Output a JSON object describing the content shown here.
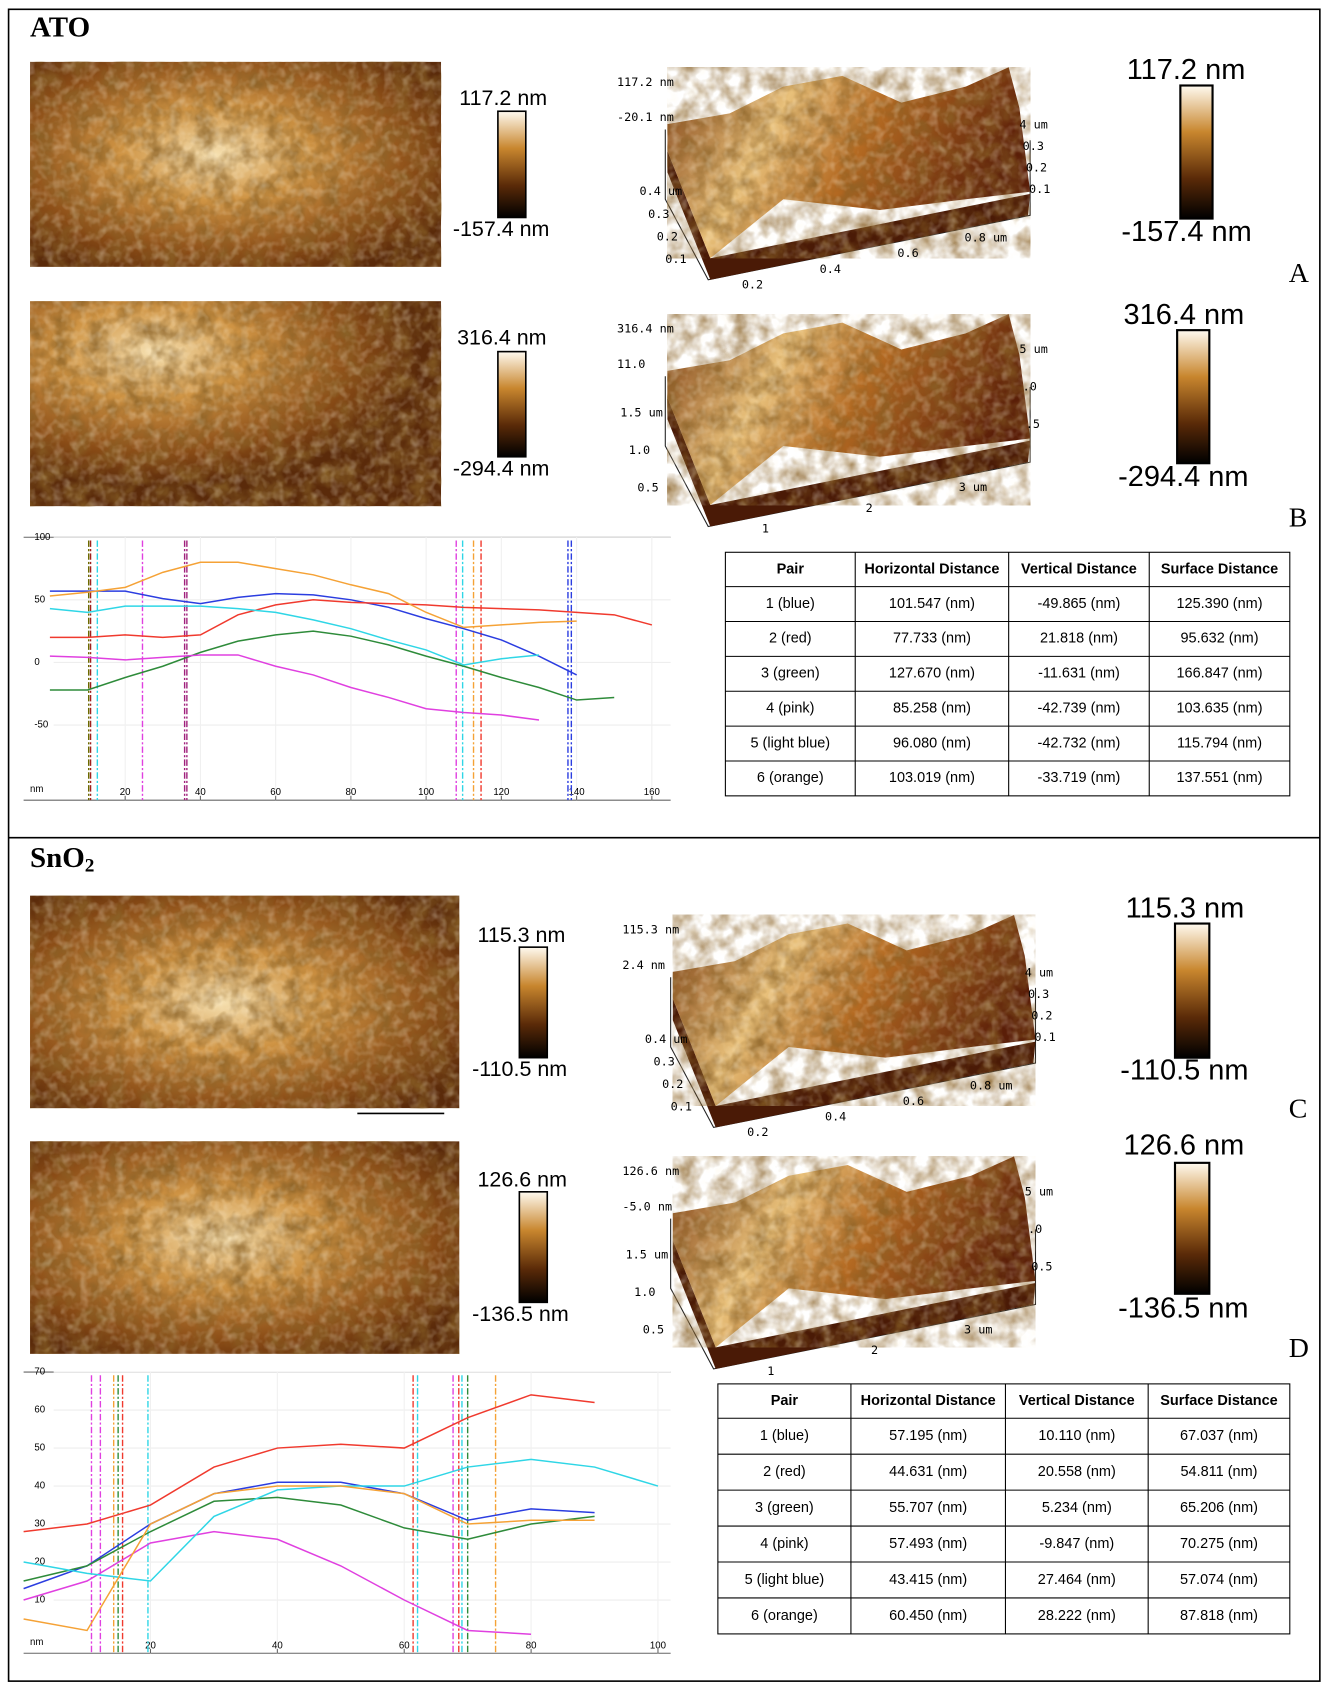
{
  "panels": [
    {
      "title": "ATO",
      "rows": [
        {
          "letter": "A",
          "map_scale": [
            "117.2 nm",
            "-157.4 nm"
          ],
          "surface": {
            "z": [
              "117.2 nm",
              "-20.1 nm"
            ],
            "y": [
              "0.4 um",
              "0.3",
              "0.2",
              "0.1"
            ],
            "right": [
              "4 um",
              "0.3",
              "0.2",
              "0.1"
            ],
            "x": [
              "0.2",
              "0.4",
              "0.6",
              "0.8 um"
            ]
          },
          "scale": [
            "117.2 nm",
            "-157.4 nm"
          ]
        },
        {
          "letter": "B",
          "map_scale": [
            "316.4 nm",
            "-294.4 nm"
          ],
          "surface": {
            "z": [
              "316.4 nm",
              "11.0"
            ],
            "y": [
              "1.5 um",
              "1.0",
              "0.5"
            ],
            "right": [
              "5 um",
              ".0",
              ".5"
            ],
            "x": [
              "1",
              "2",
              "3 um"
            ]
          },
          "scale": [
            "316.4 nm",
            "-294.4 nm"
          ]
        }
      ],
      "chart": {
        "type": "line",
        "xlabel": "nm",
        "xlim": [
          -7,
          165
        ],
        "ylim": [
          -110,
          100
        ],
        "xticks": [
          20,
          40,
          60,
          80,
          100,
          120,
          140,
          160
        ],
        "yticks": [
          100,
          50,
          0,
          -50
        ],
        "x": [
          0,
          10,
          20,
          30,
          40,
          50,
          60,
          70,
          80,
          90,
          100,
          110,
          120,
          130,
          140,
          150,
          160
        ],
        "series": [
          {
            "color": "#2b3de0",
            "values": [
              57,
              57,
              57,
              51,
              47,
              52,
              55,
              54,
              50,
              44,
              35,
              27,
              18,
              5,
              -10,
              null,
              null
            ]
          },
          {
            "color": "#f03a2e",
            "values": [
              20,
              20,
              22,
              20,
              22,
              38,
              46,
              50,
              48,
              47,
              46,
              44,
              43,
              42,
              40,
              38,
              30
            ]
          },
          {
            "color": "#2e8b3a",
            "values": [
              -22,
              -22,
              -12,
              -3,
              8,
              17,
              22,
              25,
              21,
              14,
              5,
              -3,
              -12,
              -20,
              -30,
              -28,
              null
            ]
          },
          {
            "color": "#e040e0",
            "values": [
              5,
              4,
              2,
              4,
              6,
              6,
              -3,
              -10,
              -20,
              -28,
              -37,
              -40,
              -42,
              -46,
              null,
              null,
              null
            ]
          },
          {
            "color": "#2fd6e6",
            "values": [
              43,
              40,
              45,
              45,
              45,
              43,
              40,
              34,
              27,
              18,
              10,
              -2,
              3,
              6,
              null,
              null,
              null
            ]
          },
          {
            "color": "#f5a236",
            "values": [
              53,
              56,
              60,
              72,
              80,
              80,
              75,
              70,
              62,
              55,
              40,
              28,
              30,
              32,
              33,
              null,
              null
            ]
          }
        ],
        "cursors": [
          {
            "x": 10.3,
            "color": "#6b6b00"
          },
          {
            "x": 10.8,
            "color": "#a0201c"
          },
          {
            "x": 12.6,
            "color": "#2fd6e6"
          },
          {
            "x": 24.6,
            "color": "#e040e0"
          },
          {
            "x": 35.8,
            "color": "#a0207c"
          },
          {
            "x": 36.4,
            "color": "#a0207c"
          },
          {
            "x": 108,
            "color": "#e040e0"
          },
          {
            "x": 109.7,
            "color": "#2fd6e6"
          },
          {
            "x": 112.6,
            "color": "#f5a236"
          },
          {
            "x": 114.6,
            "color": "#f03a2e"
          },
          {
            "x": 137.7,
            "color": "#2b3de0"
          },
          {
            "x": 138.6,
            "color": "#2b3de0"
          }
        ]
      },
      "table": {
        "header": [
          "Pair",
          "Horizontal Distance",
          "Vertical Distance",
          "Surface Distance"
        ],
        "rows": [
          [
            "1 (blue)",
            "101.547 (nm)",
            "-49.865 (nm)",
            "125.390 (nm)"
          ],
          [
            "2 (red)",
            "77.733 (nm)",
            "21.818 (nm)",
            "95.632 (nm)"
          ],
          [
            "3 (green)",
            "127.670 (nm)",
            "-11.631 (nm)",
            "166.847 (nm)"
          ],
          [
            "4 (pink)",
            "85.258 (nm)",
            "-42.739 (nm)",
            "103.635 (nm)"
          ],
          [
            "5 (light blue)",
            "96.080 (nm)",
            "-42.732 (nm)",
            "115.794 (nm)"
          ],
          [
            "6 (orange)",
            "103.019 (nm)",
            "-33.719 (nm)",
            "137.551 (nm)"
          ]
        ]
      }
    },
    {
      "title": "SnO",
      "title_subscript": "2",
      "rows": [
        {
          "letter": "C",
          "map_scale": [
            "115.3 nm",
            "-110.5 nm"
          ],
          "surface": {
            "z": [
              "115.3 nm",
              "2.4 nm"
            ],
            "y": [
              "0.4 um",
              "0.3",
              "0.2",
              "0.1"
            ],
            "right": [
              "4 um",
              "0.3",
              "0.2",
              "0.1"
            ],
            "x": [
              "0.2",
              "0.4",
              "0.6",
              "0.8 um"
            ]
          },
          "scale": [
            "115.3 nm",
            "-110.5 nm"
          ]
        },
        {
          "letter": "D",
          "map_scale": [
            "126.6 nm",
            "-136.5 nm"
          ],
          "surface": {
            "z": [
              "126.6 nm",
              "-5.0 nm"
            ],
            "y": [
              "1.5 um",
              "1.0",
              "0.5"
            ],
            "right": [
              "5 um",
              ".0",
              "0.5"
            ],
            "x": [
              "1",
              "2",
              "3 um"
            ]
          },
          "scale": [
            "126.6 nm",
            "-136.5 nm"
          ]
        }
      ],
      "chart": {
        "type": "line",
        "xlabel": "nm",
        "xlim": [
          0,
          102
        ],
        "ylim": [
          -4,
          70
        ],
        "xticks": [
          20,
          40,
          60,
          80,
          100
        ],
        "yticks": [
          10,
          20,
          30,
          40,
          50,
          60,
          70
        ],
        "x": [
          0,
          10,
          20,
          30,
          40,
          50,
          60,
          70,
          80,
          90,
          100
        ],
        "series": [
          {
            "color": "#2b3de0",
            "values": [
              13,
              19,
              30,
              38,
              41,
              41,
              38,
              31,
              34,
              33,
              null
            ]
          },
          {
            "color": "#f03a2e",
            "values": [
              28,
              30,
              35,
              45,
              50,
              51,
              50,
              58,
              64,
              62,
              null
            ]
          },
          {
            "color": "#2e8b3a",
            "values": [
              15,
              19,
              28,
              36,
              37,
              35,
              29,
              26,
              30,
              32,
              null
            ]
          },
          {
            "color": "#e040e0",
            "values": [
              10,
              15,
              25,
              28,
              26,
              19,
              10,
              2,
              1,
              null,
              null
            ]
          },
          {
            "color": "#2fd6e6",
            "values": [
              20,
              17,
              15,
              32,
              39,
              40,
              40,
              45,
              47,
              45,
              40
            ]
          },
          {
            "color": "#f5a236",
            "values": [
              5,
              2,
              30,
              38,
              40,
              40,
              38,
              30,
              31,
              31,
              null
            ]
          }
        ],
        "cursors": [
          {
            "x": 10.7,
            "color": "#e040e0"
          },
          {
            "x": 12.1,
            "color": "#e040e0"
          },
          {
            "x": 14.2,
            "color": "#f5a236"
          },
          {
            "x": 14.9,
            "color": "#2e8b3a"
          },
          {
            "x": 15.6,
            "color": "#f03a2e"
          },
          {
            "x": 19.6,
            "color": "#2fd6e6"
          },
          {
            "x": 61.4,
            "color": "#f03a2e"
          },
          {
            "x": 62.1,
            "color": "#2fd6e6"
          },
          {
            "x": 67.7,
            "color": "#e040e0"
          },
          {
            "x": 68.6,
            "color": "#f03a2e"
          },
          {
            "x": 69.1,
            "color": "#2fd6e6"
          },
          {
            "x": 70,
            "color": "#2e8b3a"
          },
          {
            "x": 74.4,
            "color": "#f5a236"
          }
        ]
      },
      "table": {
        "header": [
          "Pair",
          "Horizontal Distance",
          "Vertical Distance",
          "Surface Distance"
        ],
        "rows": [
          [
            "1 (blue)",
            "57.195 (nm)",
            "10.110 (nm)",
            "67.037 (nm)"
          ],
          [
            "2 (red)",
            "44.631 (nm)",
            "20.558 (nm)",
            "54.811 (nm)"
          ],
          [
            "3 (green)",
            "55.707 (nm)",
            "5.234 (nm)",
            "65.206 (nm)"
          ],
          [
            "4 (pink)",
            "57.493 (nm)",
            "-9.847 (nm)",
            "70.275 (nm)"
          ],
          [
            "5 (light blue)",
            "43.415 (nm)",
            "27.464 (nm)",
            "57.074 (nm)"
          ],
          [
            "6 (orange)",
            "60.450 (nm)",
            "28.222 (nm)",
            "87.818 (nm)"
          ]
        ]
      }
    }
  ]
}
